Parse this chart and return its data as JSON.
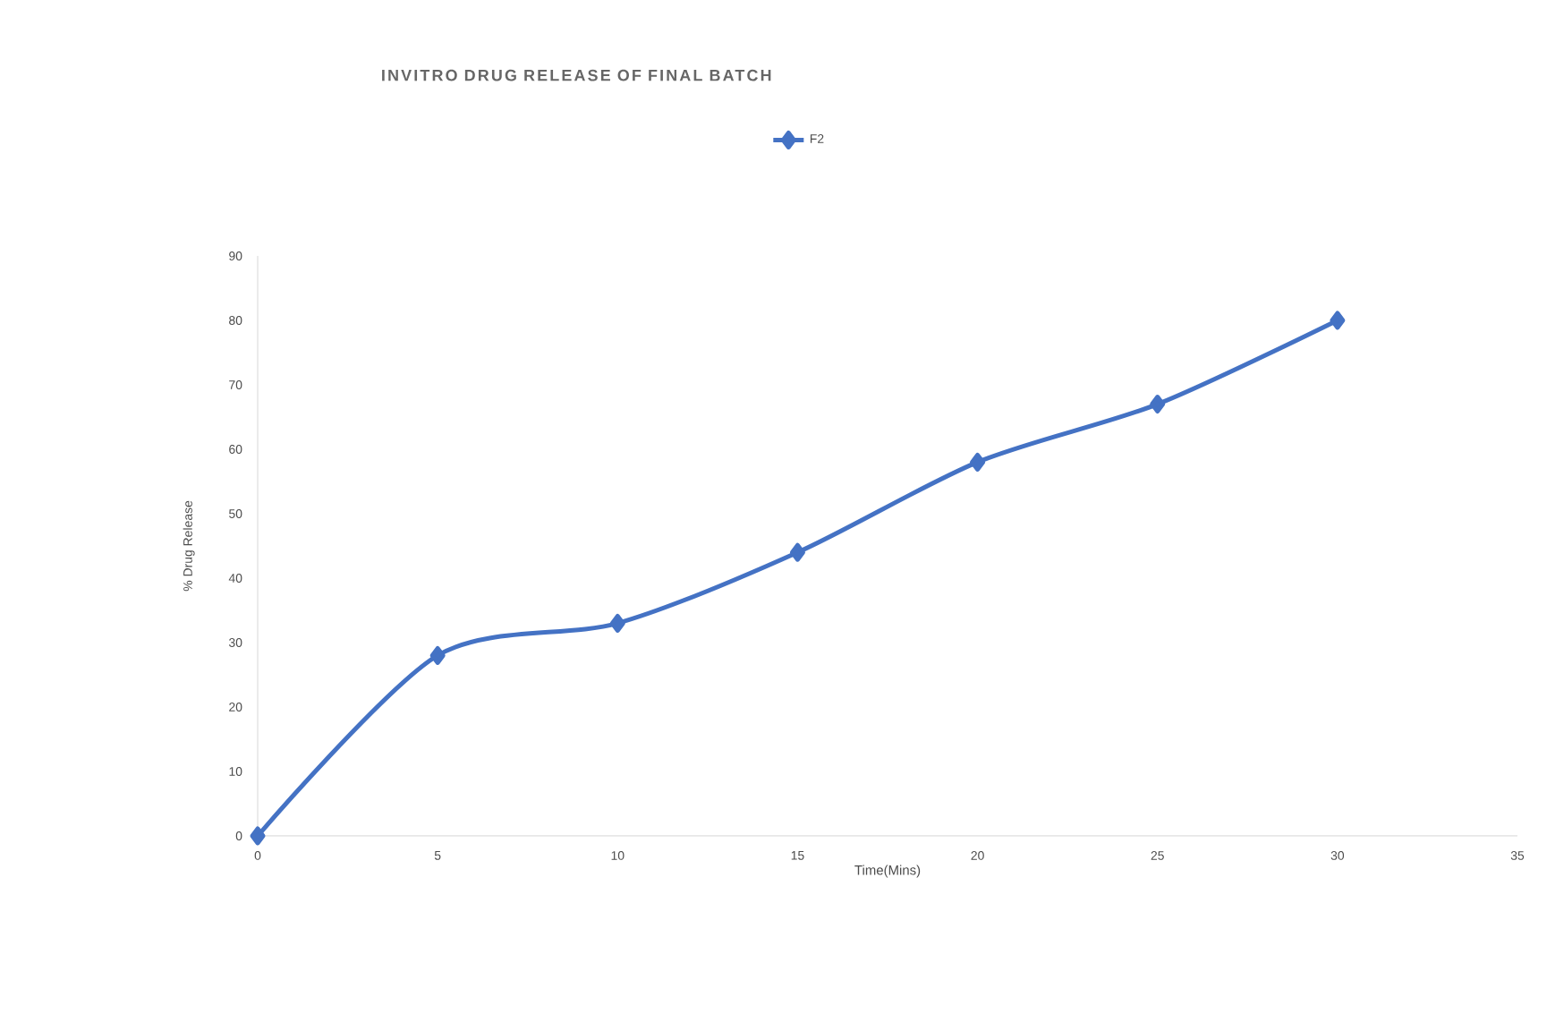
{
  "chart_data": {
    "type": "line",
    "title": "INVITRO DRUG RELEASE OF FINAL BATCH",
    "xlabel": "Time(Mins)",
    "ylabel": "% Drug Release",
    "x": [
      0,
      5,
      10,
      15,
      20,
      25,
      30
    ],
    "series": [
      {
        "name": "F2",
        "color": "#4472c4",
        "values": [
          0,
          28,
          33,
          44,
          58,
          67,
          80
        ]
      }
    ],
    "xlim": [
      0,
      35
    ],
    "xticks": [
      0,
      5,
      10,
      15,
      20,
      25,
      30,
      35
    ],
    "ylim": [
      0,
      90
    ],
    "yticks": [
      0,
      10,
      20,
      30,
      40,
      50,
      60,
      70,
      80,
      90
    ],
    "legend": "top",
    "marker": "diamond",
    "line_style": "solid",
    "grid": false
  }
}
